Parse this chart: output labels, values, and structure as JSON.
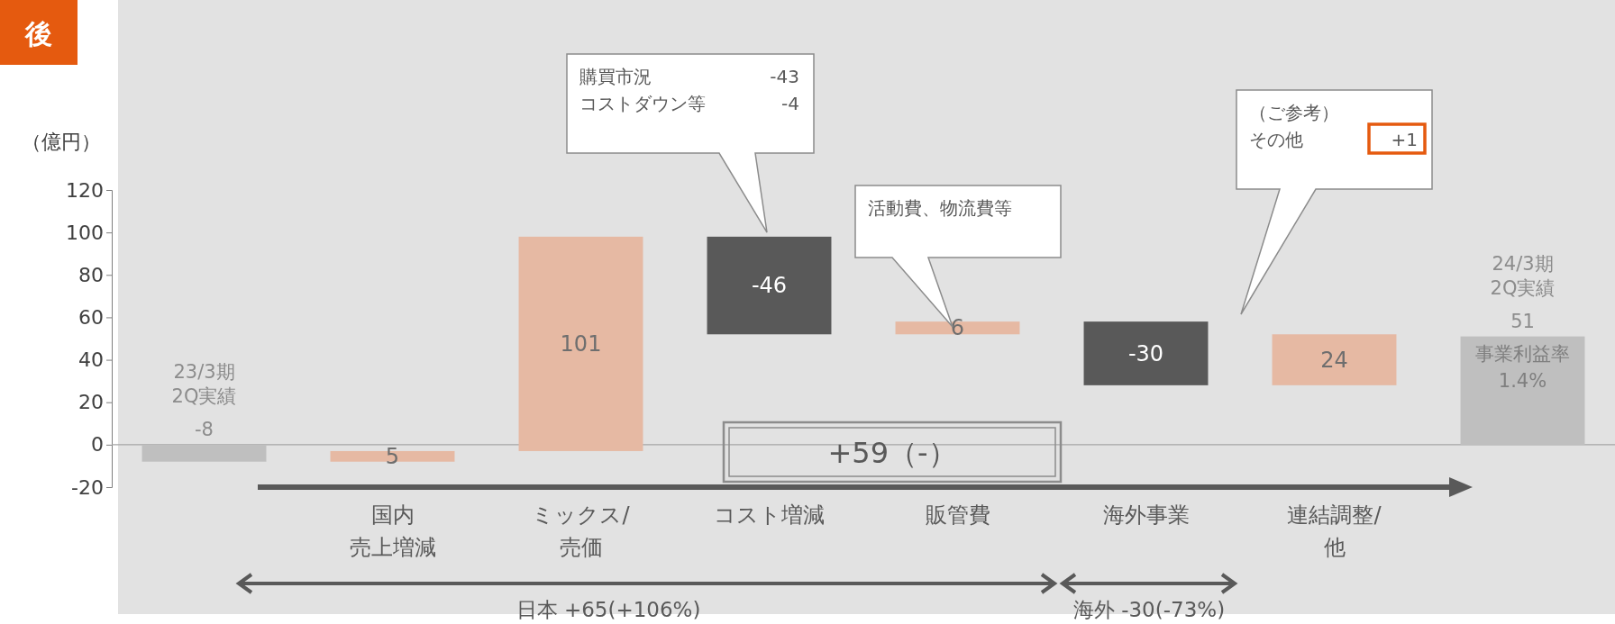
{
  "chart_data": {
    "type": "bar",
    "ylabel": "（億円）",
    "categories": [
      null,
      "国内売上増減",
      "ミックス/売価",
      "コスト増減",
      "販管費",
      "海外事業",
      "連結調整/他",
      null
    ],
    "values": [
      -8,
      5,
      101,
      -46,
      6,
      -30,
      24,
      51
    ],
    "base": [
      0,
      -8,
      -3,
      98,
      52,
      58,
      28,
      0
    ],
    "colors": [
      "#bfbfbf",
      "#e6b9a3",
      "#e6b9a3",
      "#595959",
      "#e6b9a3",
      "#595959",
      "#e6b9a3",
      "#bfbfbf"
    ],
    "data_labels": true,
    "ylim": [
      -20,
      120
    ],
    "yticks": [
      -20,
      0,
      20,
      40,
      60,
      80,
      100,
      120
    ],
    "ref_lines": [
      {
        "axis": "y",
        "value": 0,
        "color": "#a6a6a6"
      }
    ],
    "annotations": [
      "後",
      "23/3期2Q実績",
      "24/3期2Q実績",
      {
        "text": "事業利益率1.4%",
        "y": 51
      },
      "購買市況　　-43",
      "コストダウン等 -4",
      "活動費、物流費等",
      "（ご参考）",
      "その他　　+1",
      "+59（-）",
      "日本 +65(+106%)",
      "海外 -30(-73%)"
    ]
  }
}
